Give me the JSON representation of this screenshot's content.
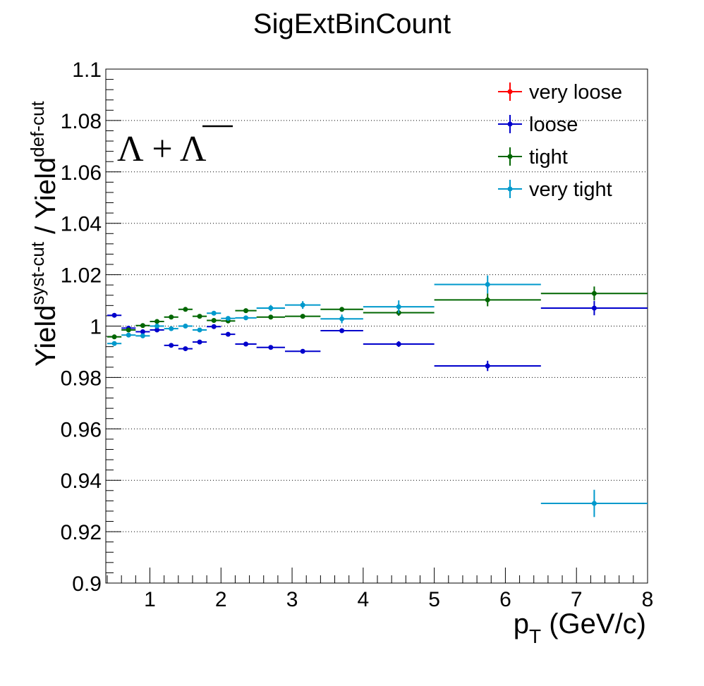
{
  "chart_data": {
    "type": "scatter",
    "title": "SigExtBinCount",
    "xlabel": {
      "main": "p",
      "sub": "T",
      "rest": " (GeV/c)"
    },
    "ylabel": {
      "a": "Yield",
      "a_sup": "syst-cut",
      "slash": " / ",
      "b": "Yield",
      "b_sup": "def-cut"
    },
    "annotation": {
      "lam": "Λ",
      "plus": " + ",
      "antilam": "Λ"
    },
    "xlim": [
      0.38,
      8.0
    ],
    "ylim": [
      0.9,
      1.1
    ],
    "grid": "horizontal-dotted",
    "legend_position": "top-right",
    "x_ticks": [
      "1",
      "2",
      "3",
      "4",
      "5",
      "6",
      "7",
      "8"
    ],
    "y_ticks": [
      "0.9",
      "0.92",
      "0.94",
      "0.96",
      "0.98",
      "1",
      "1.02",
      "1.04",
      "1.06",
      "1.08",
      "1.1"
    ],
    "series": [
      {
        "name": "very loose",
        "color": "#ff0000",
        "points": []
      },
      {
        "name": "loose",
        "color": "#0000cc",
        "points": [
          {
            "x": 0.5,
            "xlo": 0.4,
            "xhi": 0.6,
            "y": 1.0042,
            "err": 0.0004
          },
          {
            "x": 0.7,
            "xlo": 0.6,
            "xhi": 0.8,
            "y": 0.9992,
            "err": 0.0004
          },
          {
            "x": 0.9,
            "xlo": 0.8,
            "xhi": 1.0,
            "y": 0.9978,
            "err": 0.0004
          },
          {
            "x": 1.1,
            "xlo": 1.0,
            "xhi": 1.2,
            "y": 0.9985,
            "err": 0.0004
          },
          {
            "x": 1.3,
            "xlo": 1.2,
            "xhi": 1.4,
            "y": 0.9925,
            "err": 0.0004
          },
          {
            "x": 1.5,
            "xlo": 1.4,
            "xhi": 1.6,
            "y": 0.9912,
            "err": 0.0004
          },
          {
            "x": 1.7,
            "xlo": 1.6,
            "xhi": 1.8,
            "y": 0.9938,
            "err": 0.0004
          },
          {
            "x": 1.9,
            "xlo": 1.8,
            "xhi": 2.0,
            "y": 0.9998,
            "err": 0.0005
          },
          {
            "x": 2.1,
            "xlo": 2.0,
            "xhi": 2.2,
            "y": 0.9968,
            "err": 0.0005
          },
          {
            "x": 2.35,
            "xlo": 2.2,
            "xhi": 2.5,
            "y": 0.993,
            "err": 0.0005
          },
          {
            "x": 2.7,
            "xlo": 2.5,
            "xhi": 2.9,
            "y": 0.9917,
            "err": 0.0006
          },
          {
            "x": 3.15,
            "xlo": 2.9,
            "xhi": 3.4,
            "y": 0.9902,
            "err": 0.0007
          },
          {
            "x": 3.7,
            "xlo": 3.4,
            "xhi": 4.0,
            "y": 0.9982,
            "err": 0.0008
          },
          {
            "x": 4.5,
            "xlo": 4.0,
            "xhi": 5.0,
            "y": 0.993,
            "err": 0.0011
          },
          {
            "x": 5.75,
            "xlo": 5.0,
            "xhi": 6.5,
            "y": 0.9845,
            "err": 0.002
          },
          {
            "x": 7.25,
            "xlo": 6.5,
            "xhi": 8.0,
            "y": 1.007,
            "err": 0.0028
          }
        ]
      },
      {
        "name": "tight",
        "color": "#006600",
        "points": [
          {
            "x": 0.5,
            "xlo": 0.4,
            "xhi": 0.6,
            "y": 0.9958,
            "err": 0.0004
          },
          {
            "x": 0.7,
            "xlo": 0.6,
            "xhi": 0.8,
            "y": 0.9985,
            "err": 0.0004
          },
          {
            "x": 0.9,
            "xlo": 0.8,
            "xhi": 1.0,
            "y": 1.0002,
            "err": 0.0004
          },
          {
            "x": 1.1,
            "xlo": 1.0,
            "xhi": 1.2,
            "y": 1.0018,
            "err": 0.0004
          },
          {
            "x": 1.3,
            "xlo": 1.2,
            "xhi": 1.4,
            "y": 1.0035,
            "err": 0.0004
          },
          {
            "x": 1.5,
            "xlo": 1.4,
            "xhi": 1.6,
            "y": 1.0065,
            "err": 0.0004
          },
          {
            "x": 1.7,
            "xlo": 1.6,
            "xhi": 1.8,
            "y": 1.0038,
            "err": 0.0004
          },
          {
            "x": 1.9,
            "xlo": 1.8,
            "xhi": 2.0,
            "y": 1.0022,
            "err": 0.0005
          },
          {
            "x": 2.1,
            "xlo": 2.0,
            "xhi": 2.2,
            "y": 1.002,
            "err": 0.0005
          },
          {
            "x": 2.35,
            "xlo": 2.2,
            "xhi": 2.5,
            "y": 1.006,
            "err": 0.0005
          },
          {
            "x": 2.7,
            "xlo": 2.5,
            "xhi": 2.9,
            "y": 1.0035,
            "err": 0.0006
          },
          {
            "x": 3.15,
            "xlo": 2.9,
            "xhi": 3.4,
            "y": 1.0038,
            "err": 0.0007
          },
          {
            "x": 3.7,
            "xlo": 3.4,
            "xhi": 4.0,
            "y": 1.0065,
            "err": 0.0008
          },
          {
            "x": 4.5,
            "xlo": 4.0,
            "xhi": 5.0,
            "y": 1.0052,
            "err": 0.0012
          },
          {
            "x": 5.75,
            "xlo": 5.0,
            "xhi": 6.5,
            "y": 1.0102,
            "err": 0.0025
          },
          {
            "x": 7.25,
            "xlo": 6.5,
            "xhi": 8.0,
            "y": 1.0127,
            "err": 0.0027
          }
        ]
      },
      {
        "name": "very tight",
        "color": "#0099cc",
        "points": [
          {
            "x": 0.5,
            "xlo": 0.4,
            "xhi": 0.6,
            "y": 0.9932,
            "err": 0.0005
          },
          {
            "x": 0.7,
            "xlo": 0.6,
            "xhi": 0.8,
            "y": 0.9965,
            "err": 0.0005
          },
          {
            "x": 0.9,
            "xlo": 0.8,
            "xhi": 1.0,
            "y": 0.9962,
            "err": 0.0005
          },
          {
            "x": 1.1,
            "xlo": 1.0,
            "xhi": 1.2,
            "y": 1.0,
            "err": 0.0005
          },
          {
            "x": 1.3,
            "xlo": 1.2,
            "xhi": 1.4,
            "y": 0.999,
            "err": 0.0005
          },
          {
            "x": 1.5,
            "xlo": 1.4,
            "xhi": 1.6,
            "y": 1.0,
            "err": 0.0005
          },
          {
            "x": 1.7,
            "xlo": 1.6,
            "xhi": 1.8,
            "y": 0.9985,
            "err": 0.0005
          },
          {
            "x": 1.9,
            "xlo": 1.8,
            "xhi": 2.0,
            "y": 1.005,
            "err": 0.0006
          },
          {
            "x": 2.1,
            "xlo": 2.0,
            "xhi": 2.2,
            "y": 1.003,
            "err": 0.0006
          },
          {
            "x": 2.35,
            "xlo": 2.2,
            "xhi": 2.5,
            "y": 1.0032,
            "err": 0.0007
          },
          {
            "x": 2.7,
            "xlo": 2.5,
            "xhi": 2.9,
            "y": 1.007,
            "err": 0.0012
          },
          {
            "x": 3.15,
            "xlo": 2.9,
            "xhi": 3.4,
            "y": 1.0082,
            "err": 0.0015
          },
          {
            "x": 3.7,
            "xlo": 3.4,
            "xhi": 4.0,
            "y": 1.0028,
            "err": 0.0017
          },
          {
            "x": 4.5,
            "xlo": 4.0,
            "xhi": 5.0,
            "y": 1.0075,
            "err": 0.0025
          },
          {
            "x": 5.75,
            "xlo": 5.0,
            "xhi": 6.5,
            "y": 1.0162,
            "err": 0.0035
          },
          {
            "x": 7.25,
            "xlo": 6.5,
            "xhi": 8.0,
            "y": 0.931,
            "err": 0.0053
          }
        ]
      }
    ]
  }
}
